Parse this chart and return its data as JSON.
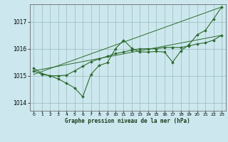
{
  "title": "Graphe pression niveau de la mer (hPa)",
  "bg_color": "#cce8ee",
  "grid_color": "#99bbbb",
  "line_color": "#2d6a2d",
  "xlim": [
    -0.5,
    23.5
  ],
  "ylim": [
    1013.7,
    1017.65
  ],
  "yticks": [
    1014,
    1015,
    1016,
    1017
  ],
  "xticks": [
    0,
    1,
    2,
    3,
    4,
    5,
    6,
    7,
    8,
    9,
    10,
    11,
    12,
    13,
    14,
    15,
    16,
    17,
    18,
    19,
    20,
    21,
    22,
    23
  ],
  "series1_x": [
    0,
    1,
    2,
    3,
    4,
    5,
    6,
    7,
    8,
    9,
    10,
    11,
    12,
    13,
    14,
    15,
    16,
    17,
    18,
    19,
    20,
    21,
    22,
    23
  ],
  "series1_y": [
    1015.28,
    1015.08,
    1015.0,
    1014.88,
    1014.72,
    1014.55,
    1014.22,
    1015.05,
    1015.38,
    1015.48,
    1016.0,
    1016.32,
    1016.02,
    1015.88,
    1015.88,
    1015.9,
    1015.88,
    1015.5,
    1015.92,
    1016.15,
    1016.52,
    1016.68,
    1017.1,
    1017.55
  ],
  "series2_x": [
    0,
    1,
    2,
    3,
    4,
    5,
    6,
    7,
    8,
    9,
    10,
    11,
    12,
    13,
    14,
    15,
    16,
    17,
    18,
    19,
    20,
    21,
    22,
    23
  ],
  "series2_y": [
    1015.18,
    1015.05,
    1015.0,
    1015.0,
    1015.02,
    1015.18,
    1015.35,
    1015.52,
    1015.62,
    1015.72,
    1015.82,
    1015.88,
    1015.95,
    1016.0,
    1016.0,
    1016.0,
    1016.05,
    1016.05,
    1016.05,
    1016.1,
    1016.18,
    1016.22,
    1016.32,
    1016.5
  ],
  "trend1_x": [
    0,
    23
  ],
  "trend1_y": [
    1015.18,
    1016.5
  ],
  "trend2_x": [
    0,
    23
  ],
  "trend2_y": [
    1015.05,
    1017.55
  ]
}
